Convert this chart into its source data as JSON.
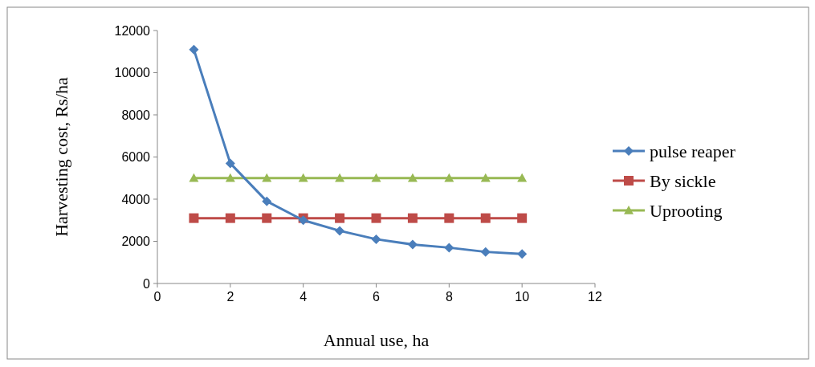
{
  "chart_data": {
    "type": "line",
    "xlabel": "Annual use, ha",
    "ylabel": "Harvesting cost, Rs/ha",
    "x": [
      1,
      2,
      3,
      4,
      5,
      6,
      7,
      8,
      9,
      10
    ],
    "xlim": [
      0,
      12
    ],
    "xticks": [
      0,
      2,
      4,
      6,
      8,
      10,
      12
    ],
    "ylim": [
      0,
      12000
    ],
    "yticks": [
      0,
      2000,
      4000,
      6000,
      8000,
      10000,
      12000
    ],
    "grid": false,
    "legend": "right",
    "series": [
      {
        "name": "pulse reaper",
        "color": "#4a7ebb",
        "marker": "diamond",
        "values": [
          11100,
          5700,
          3900,
          3000,
          2500,
          2100,
          1850,
          1700,
          1500,
          1400
        ]
      },
      {
        "name": "By sickle",
        "color": "#be4b48",
        "marker": "square",
        "values": [
          3100,
          3100,
          3100,
          3100,
          3100,
          3100,
          3100,
          3100,
          3100,
          3100
        ]
      },
      {
        "name": "Uprooting",
        "color": "#98b954",
        "marker": "triangle",
        "values": [
          5000,
          5000,
          5000,
          5000,
          5000,
          5000,
          5000,
          5000,
          5000,
          5000
        ]
      }
    ]
  }
}
